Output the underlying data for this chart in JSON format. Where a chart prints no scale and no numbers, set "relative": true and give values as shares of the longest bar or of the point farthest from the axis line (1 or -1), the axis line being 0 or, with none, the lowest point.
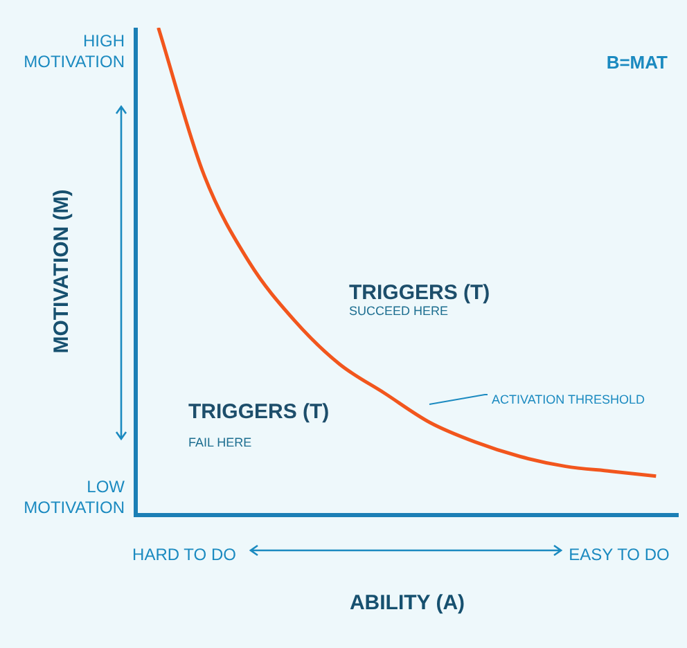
{
  "chart_data": {
    "type": "line",
    "relative": true,
    "tick_labels": false,
    "marker": "none",
    "legend": false,
    "xlabel": "ABILITY (A)",
    "ylabel": "MOTIVATION (M)",
    "categories": [
      null,
      null,
      null,
      null,
      null,
      null,
      null,
      null,
      null,
      null,
      null,
      null
    ],
    "series": [
      {
        "color": "#f2561d",
        "values": [
          1,
          0.7,
          0.52,
          0.4,
          0.31,
          0.25,
          0.19,
          0.15,
          0.12,
          0.1,
          0.09,
          0.08
        ]
      }
    ],
    "annotations": [
      "B=MAT",
      "TRIGGERS (T)",
      "SUCCEED HERE",
      "TRIGGERS (T)",
      "FAIL HERE",
      "ACTIVATION THRESHOLD",
      "HIGH MOTIVATION",
      "LOW MOTIVATION",
      "HARD TO DO",
      "EASY TO DO"
    ]
  }
}
